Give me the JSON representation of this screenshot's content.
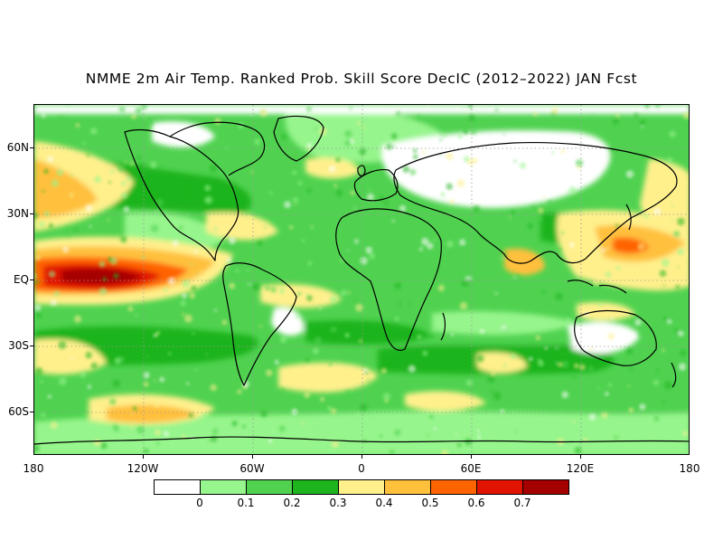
{
  "title": "NMME 2m Air Temp. Ranked Prob. Skill Score DecIC (2012–2022) JAN Fcst",
  "axes": {
    "lat_labels": [
      "60N",
      "30N",
      "EQ",
      "30S",
      "60S"
    ],
    "lon_labels": [
      "180",
      "120W",
      "60W",
      "0",
      "60E",
      "120E",
      "180"
    ]
  },
  "colorbar": {
    "colors": [
      "#ffffff",
      "#96f58c",
      "#50d250",
      "#1eb41e",
      "#fff08c",
      "#ffc03c",
      "#ff6400",
      "#e11400",
      "#a50000"
    ],
    "labels": [
      "0",
      "0.1",
      "0.2",
      "0.3",
      "0.4",
      "0.5",
      "0.6",
      "0.7"
    ]
  },
  "map": {
    "ocean_color": "#50d250",
    "land_color": "#96f58c",
    "no_skill_color": "#ffffff",
    "coast_color": "#000000",
    "grid_color": "#999999"
  }
}
